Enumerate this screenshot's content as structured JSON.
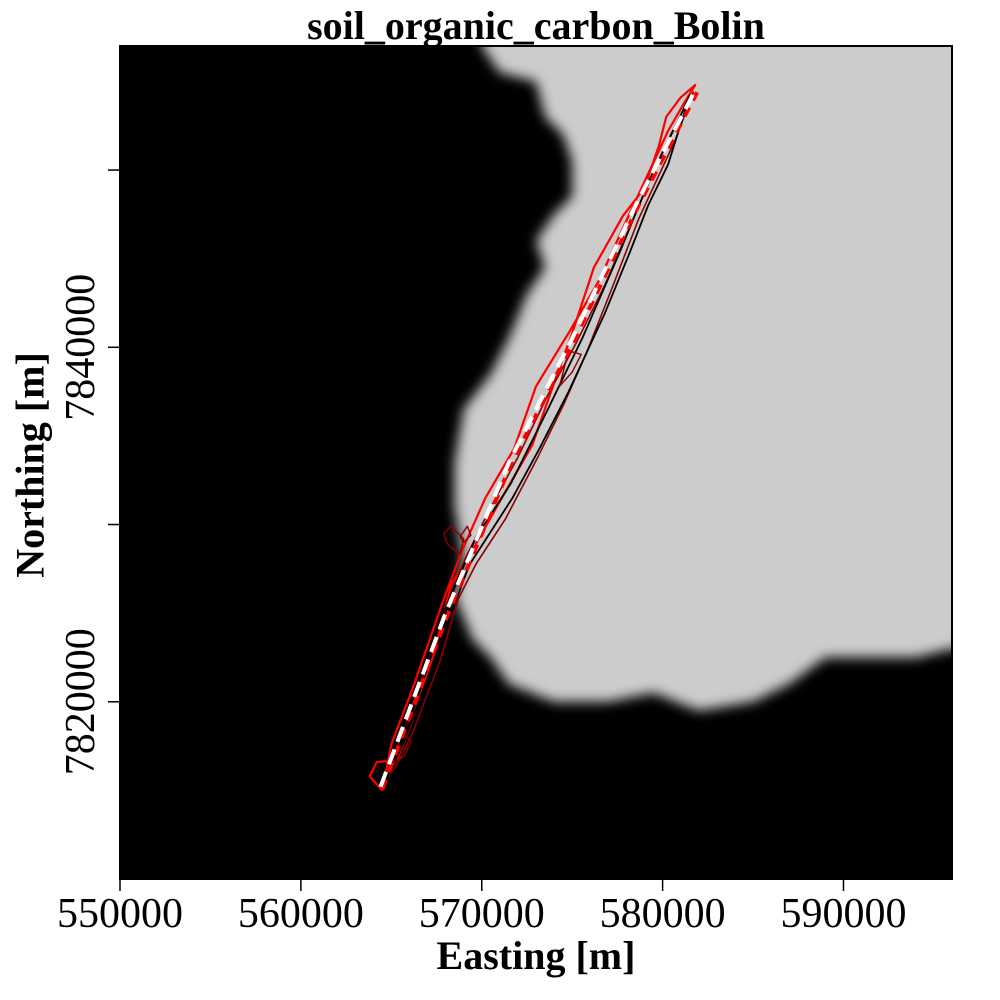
{
  "chart_data": {
    "type": "heatmap",
    "title": "soil_organic_carbon_Bolin",
    "xlabel": "Easting [m]",
    "ylabel": "Northing [m]",
    "xlim": [
      550000,
      596000
    ],
    "ylim": [
      7810000,
      7857000
    ],
    "x_ticks": [
      550000,
      560000,
      570000,
      580000,
      590000
    ],
    "x_tick_labels": [
      "550000",
      "560000",
      "570000",
      "580000",
      "590000"
    ],
    "y_ticks": [
      7820000,
      7830000,
      7840000,
      7850000
    ],
    "y_tick_labels": [
      "7820000",
      "",
      "7840000",
      ""
    ],
    "grid": false,
    "colors": {
      "background_high": "#cccccc",
      "background_low": "#000000",
      "flowline": "#ffffff",
      "contour_outer": "#ff0000",
      "contour_inner": "#8b0000",
      "contour_core": "#000000"
    },
    "raster_boundary": {
      "description_units": "data coordinates (Easting, Northing) of the dark/light field boundary",
      "points": [
        [
          570000,
          7857000
        ],
        [
          571000,
          7855500
        ],
        [
          573000,
          7855000
        ],
        [
          573500,
          7853000
        ],
        [
          574500,
          7852000
        ],
        [
          575000,
          7850500
        ],
        [
          575000,
          7848500
        ],
        [
          574000,
          7847500
        ],
        [
          573000,
          7846000
        ],
        [
          573500,
          7844500
        ],
        [
          572500,
          7843000
        ],
        [
          571500,
          7840500
        ],
        [
          570500,
          7838500
        ],
        [
          569000,
          7836500
        ],
        [
          568500,
          7833500
        ],
        [
          568500,
          7831000
        ],
        [
          569000,
          7828000
        ],
        [
          568500,
          7826000
        ],
        [
          569500,
          7823500
        ],
        [
          570500,
          7822500
        ],
        [
          571500,
          7821000
        ],
        [
          574000,
          7820000
        ],
        [
          577000,
          7820000
        ],
        [
          579500,
          7820500
        ],
        [
          582000,
          7819500
        ],
        [
          585000,
          7820000
        ],
        [
          587000,
          7821000
        ],
        [
          589000,
          7822500
        ],
        [
          591500,
          7822500
        ],
        [
          594000,
          7822500
        ],
        [
          596000,
          7823000
        ]
      ]
    },
    "flowline": {
      "x": [
        564400,
        568000,
        571500,
        575000,
        578500,
        581800
      ],
      "y": [
        7815200,
        7825000,
        7833500,
        7840500,
        7848000,
        7854500
      ]
    },
    "series": [
      {
        "x": [
          564500,
          563800,
          564200,
          565300,
          566000,
          567300,
          568300,
          569400,
          571000,
          572800,
          574000,
          575000,
          576200,
          577800,
          579000,
          579800,
          580200,
          581000,
          581800,
          581200,
          580300,
          578200,
          576500,
          574800,
          573000,
          571800,
          570200,
          568900,
          567800,
          566200,
          565000,
          564500
        ],
        "y": [
          7815000,
          7815800,
          7816600,
          7816700,
          7818500,
          7822500,
          7826600,
          7828400,
          7831300,
          7834500,
          7838000,
          7840800,
          7844500,
          7847400,
          7849000,
          7851400,
          7853000,
          7854100,
          7854800,
          7853800,
          7852200,
          7847600,
          7843800,
          7840800,
          7837800,
          7834300,
          7831500,
          7828500,
          7825500,
          7820800,
          7817600,
          7815000
        ]
      },
      {
        "x": [
          564400,
          565400,
          566200,
          567700,
          568700,
          569700,
          571300,
          573100,
          574500,
          575800,
          577300,
          578700,
          579700,
          580700,
          581700,
          581300,
          580200,
          578400,
          576800,
          575200,
          573600,
          572000,
          570400,
          569100,
          567800,
          566400,
          565200,
          564400
        ],
        "y": [
          7815100,
          7816600,
          7818300,
          7822300,
          7825800,
          7827800,
          7830300,
          7833800,
          7836700,
          7839700,
          7843600,
          7847300,
          7849500,
          7851700,
          7854400,
          7853700,
          7851500,
          7847300,
          7843500,
          7840200,
          7837200,
          7833800,
          7830800,
          7828100,
          7824800,
          7820500,
          7817100,
          7815100
        ]
      },
      {
        "x": [
          564600,
          565800,
          567700,
          569300,
          571700,
          573200,
          574800,
          576800,
          578200,
          579200,
          580300,
          581500,
          581000,
          579300,
          577600,
          575600,
          573700,
          571600,
          569700,
          568000,
          566200,
          564600
        ],
        "y": [
          7815300,
          7818000,
          7823300,
          7827700,
          7831500,
          7834300,
          7837500,
          7841900,
          7845400,
          7848000,
          7850300,
          7854200,
          7853100,
          7849500,
          7845300,
          7840600,
          7836600,
          7832300,
          7829300,
          7825300,
          7820200,
          7815300
        ]
      },
      {
        "x": [
          568800,
          568100,
          567900,
          568300,
          569000,
          568800
        ],
        "y": [
          7828300,
          7828900,
          7829500,
          7829900,
          7829200,
          7828300
        ]
      },
      {
        "x": [
          568800,
          569200,
          569400,
          569000,
          568800
        ],
        "y": [
          7829300,
          7829900,
          7829400,
          7829000,
          7829300
        ]
      },
      {
        "x": [
          574300,
          575000,
          575500,
          574800,
          574300
        ],
        "y": [
          7837800,
          7838600,
          7839600,
          7839800,
          7837800
        ]
      },
      {
        "x": [
          565000,
          565700,
          566100,
          565600,
          565000
        ],
        "y": [
          7816500,
          7816900,
          7817800,
          7818200,
          7816500
        ]
      }
    ]
  }
}
